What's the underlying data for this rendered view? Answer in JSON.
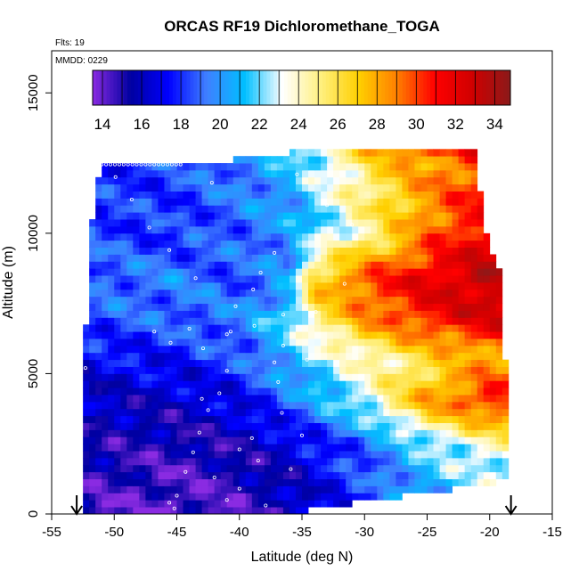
{
  "chart_data": {
    "type": "heatmap",
    "title": "ORCAS RF19 Dichloromethane_TOGA",
    "xlabel": "Latitude (deg N)",
    "ylabel": "Altitude (m)",
    "xlim": [
      -55,
      -15
    ],
    "ylim": [
      0,
      16500
    ],
    "x_ticks": [
      -55,
      -50,
      -45,
      -40,
      -35,
      -30,
      -25,
      -20,
      -15
    ],
    "y_ticks": [
      0,
      5000,
      10000,
      15000
    ],
    "annotations": {
      "flights": "Flts: 19",
      "date": "MMDD: 0229"
    },
    "colorbar": {
      "min": 13.5,
      "max": 34.8,
      "ticks": [
        14,
        16,
        18,
        20,
        22,
        24,
        26,
        28,
        30,
        32,
        34
      ],
      "colors": [
        "#8a2be2",
        "#0000a0",
        "#0000ff",
        "#3f7fff",
        "#00bfff",
        "#ffffff",
        "#fff080",
        "#ffd000",
        "#ff8000",
        "#ff0000",
        "#d00000",
        "#8b1a1a"
      ]
    },
    "boundary_left": [
      [
        -52.7,
        0
      ],
      [
        -52.7,
        4000
      ],
      [
        -52.2,
        7000
      ],
      [
        -52,
        9800
      ],
      [
        -51.1,
        12500
      ]
    ],
    "boundary_right": [
      [
        -36.5,
        0
      ],
      [
        -18.3,
        1200
      ],
      [
        -18.3,
        4200
      ],
      [
        -19.2,
        7000
      ],
      [
        -19.2,
        8600
      ],
      [
        -20.6,
        10500
      ],
      [
        -21,
        13000
      ]
    ],
    "top_boundary": [
      [
        -51.1,
        12500
      ],
      [
        -43,
        12500
      ],
      [
        -37,
        12800
      ],
      [
        -34,
        13000
      ],
      [
        -21,
        13000
      ]
    ],
    "value_field": {
      "altitude_m": [
        0,
        2500,
        4000,
        5500,
        7000,
        8300,
        10000,
        12500,
        13000
      ],
      "anchors": [
        [
          [
            -53,
            14.5
          ],
          [
            -45,
            14.0
          ],
          [
            -40,
            14.5
          ],
          [
            -36,
            15.5
          ],
          [
            -30,
            18
          ],
          [
            -25,
            20
          ],
          [
            -20,
            21
          ]
        ],
        [
          [
            -53,
            15.5
          ],
          [
            -45,
            15.0
          ],
          [
            -40,
            15.5
          ],
          [
            -36,
            16.5
          ],
          [
            -30,
            19
          ],
          [
            -25,
            22
          ],
          [
            -20,
            24
          ]
        ],
        [
          [
            -53,
            16.0
          ],
          [
            -45,
            16.0
          ],
          [
            -40,
            17
          ],
          [
            -36,
            19
          ],
          [
            -30,
            23
          ],
          [
            -25,
            28
          ],
          [
            -20,
            31
          ]
        ],
        [
          [
            -53,
            17.0
          ],
          [
            -45,
            17.5
          ],
          [
            -40,
            18.5
          ],
          [
            -36,
            21
          ],
          [
            -30,
            24
          ],
          [
            -25,
            26
          ],
          [
            -20,
            28
          ]
        ],
        [
          [
            -53,
            18.5
          ],
          [
            -45,
            19.0
          ],
          [
            -40,
            19.5
          ],
          [
            -36,
            22
          ],
          [
            -34,
            25
          ],
          [
            -30,
            28.5
          ],
          [
            -25,
            31
          ],
          [
            -20,
            32.5
          ]
        ],
        [
          [
            -53,
            19.0
          ],
          [
            -45,
            19.5
          ],
          [
            -40,
            18.5
          ],
          [
            -36,
            20
          ],
          [
            -34,
            27
          ],
          [
            -30,
            30
          ],
          [
            -25,
            32
          ],
          [
            -20,
            33.5
          ]
        ],
        [
          [
            -53,
            18.5
          ],
          [
            -45,
            18.0
          ],
          [
            -40,
            19
          ],
          [
            -36,
            20
          ],
          [
            -30,
            24.5
          ],
          [
            -27,
            27
          ],
          [
            -25,
            29
          ],
          [
            -20,
            32
          ]
        ],
        [
          [
            -53,
            17.5
          ],
          [
            -45,
            18.5
          ],
          [
            -40,
            19.5
          ],
          [
            -36,
            21
          ],
          [
            -32,
            24
          ],
          [
            -28,
            27
          ],
          [
            -20,
            30
          ]
        ],
        [
          [
            -53,
            18.0
          ],
          [
            -45,
            19.0
          ],
          [
            -40,
            20
          ],
          [
            -36,
            22
          ],
          [
            -32,
            25
          ],
          [
            -28,
            29
          ],
          [
            -21,
            32
          ]
        ]
      ]
    },
    "sample_points": [
      [
        -45.2,
        200
      ],
      [
        -45.6,
        400
      ],
      [
        -45.0,
        650
      ],
      [
        -44.3,
        1500
      ],
      [
        -43.7,
        2200
      ],
      [
        -43.2,
        2900
      ],
      [
        -42.5,
        3700
      ],
      [
        -41.6,
        4300
      ],
      [
        -41.0,
        5100
      ],
      [
        -42.9,
        5900
      ],
      [
        -45.5,
        6100
      ],
      [
        -41.0,
        6400
      ],
      [
        -40.7,
        6500
      ],
      [
        -38.8,
        6700
      ],
      [
        -41.0,
        500
      ],
      [
        -40.0,
        900
      ],
      [
        -37.9,
        300
      ],
      [
        -35.9,
        1600
      ],
      [
        -36.6,
        3600
      ],
      [
        -35.0,
        2800
      ],
      [
        -36.9,
        4700
      ],
      [
        -34.6,
        5500
      ],
      [
        -33.9,
        7200
      ],
      [
        -31.6,
        8200
      ],
      [
        -31.0,
        10300
      ],
      [
        -33.0,
        11000
      ],
      [
        -35.4,
        12100
      ],
      [
        -46.8,
        6500
      ],
      [
        -44.0,
        6600
      ],
      [
        -40.3,
        7400
      ],
      [
        -38.9,
        8000
      ],
      [
        -43.5,
        8400
      ],
      [
        -45.6,
        9400
      ],
      [
        -48.6,
        11200
      ],
      [
        -49.9,
        12000
      ],
      [
        -52.3,
        5200
      ],
      [
        -52.8,
        4500
      ],
      [
        -51.8,
        11200
      ],
      [
        -47.2,
        10200
      ],
      [
        -42.2,
        11800
      ],
      [
        -38.3,
        8600
      ],
      [
        -37.2,
        9300
      ],
      [
        -40.0,
        2300
      ],
      [
        -42.0,
        1300
      ],
      [
        -38.5,
        1900
      ],
      [
        -39.0,
        2700
      ],
      [
        -43.0,
        4100
      ],
      [
        -37.2,
        5400
      ],
      [
        -36.5,
        6000
      ],
      [
        -36.5,
        7100
      ]
    ],
    "arrows_x": [
      -53,
      -18.3
    ]
  }
}
